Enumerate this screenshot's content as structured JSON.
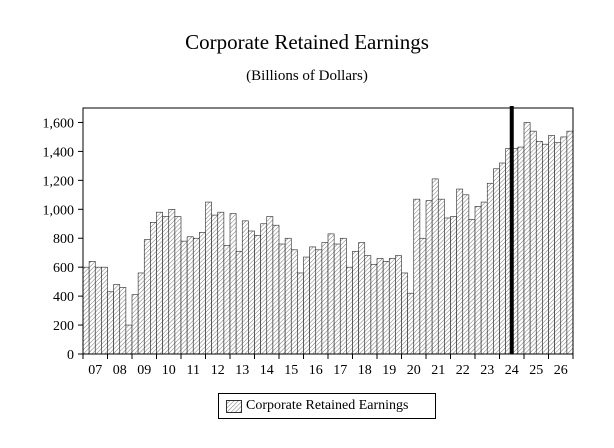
{
  "chart_data": {
    "type": "bar",
    "title": "Corporate Retained Earnings",
    "subtitle": "(Billions of Dollars)",
    "ylim": [
      0,
      1700
    ],
    "yticks": [
      0,
      200,
      400,
      600,
      800,
      1000,
      1200,
      1400,
      1600
    ],
    "ytick_labels": [
      "0",
      "200",
      "400",
      "600",
      "800",
      "1,000",
      "1,200",
      "1,400",
      "1,600"
    ],
    "year_labels": [
      "07",
      "08",
      "09",
      "10",
      "11",
      "12",
      "13",
      "14",
      "15",
      "16",
      "17",
      "18",
      "19",
      "20",
      "21",
      "22",
      "23",
      "24",
      "25",
      "26"
    ],
    "quarters_per_year": 4,
    "forecast_divider_after_index": 69,
    "grid": false,
    "legend_position": "bottom",
    "series": [
      {
        "name": "Corporate Retained Earnings",
        "values": [
          600,
          640,
          600,
          600,
          430,
          480,
          460,
          200,
          410,
          560,
          790,
          910,
          980,
          950,
          1000,
          950,
          780,
          810,
          800,
          840,
          1050,
          960,
          980,
          750,
          970,
          710,
          920,
          850,
          820,
          900,
          950,
          890,
          760,
          800,
          720,
          560,
          670,
          740,
          720,
          770,
          830,
          760,
          800,
          600,
          710,
          770,
          680,
          620,
          660,
          640,
          660,
          680,
          560,
          420,
          1070,
          800,
          1060,
          1210,
          1070,
          940,
          950,
          1140,
          1100,
          930,
          1020,
          1050,
          1180,
          1280,
          1320,
          1420,
          1420,
          1430,
          1600,
          1540,
          1470,
          1450,
          1510,
          1460,
          1500,
          1540
        ]
      }
    ]
  }
}
